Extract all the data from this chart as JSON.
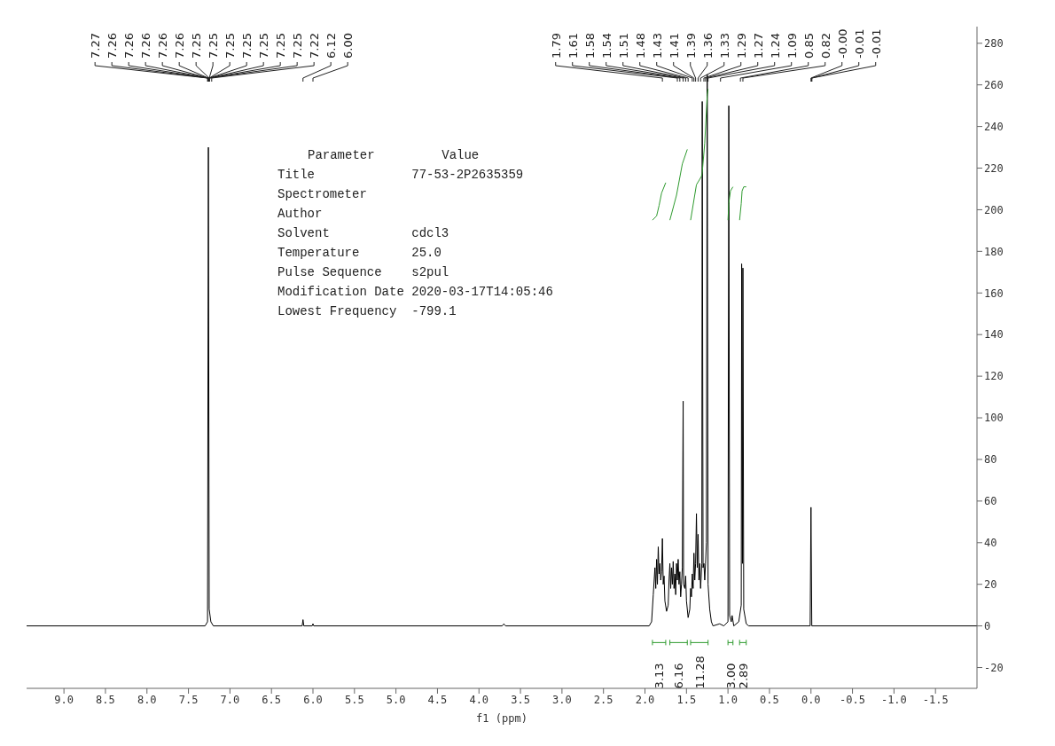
{
  "chart_data": {
    "type": "line",
    "xlabel": "f1 (ppm)",
    "xlim": [
      9.45,
      -2.0
    ],
    "ylim": [
      -30,
      288
    ],
    "xticks": [
      {
        "value": 9,
        "label": "9.0"
      },
      {
        "value": 8.5,
        "label": "8.5"
      },
      {
        "value": 8,
        "label": "8.0"
      },
      {
        "value": 7.5,
        "label": "7.5"
      },
      {
        "value": 7,
        "label": "7.0"
      },
      {
        "value": 6.5,
        "label": "6.5"
      },
      {
        "value": 6,
        "label": "6.0"
      },
      {
        "value": 5.5,
        "label": "5.5"
      },
      {
        "value": 5,
        "label": "5.0"
      },
      {
        "value": 4.5,
        "label": "4.5"
      },
      {
        "value": 4,
        "label": "4.0"
      },
      {
        "value": 3.5,
        "label": "3.5"
      },
      {
        "value": 3,
        "label": "3.0"
      },
      {
        "value": 2.5,
        "label": "2.5"
      },
      {
        "value": 2,
        "label": "2.0"
      },
      {
        "value": 1.5,
        "label": "1.5"
      },
      {
        "value": 1,
        "label": "1.0"
      },
      {
        "value": 0.5,
        "label": "0.5"
      },
      {
        "value": 0,
        "label": "0.0"
      },
      {
        "value": -0.5,
        "label": "-0.5"
      },
      {
        "value": -1,
        "label": "-1.0"
      },
      {
        "value": -1.5,
        "label": "-1.5"
      }
    ],
    "yticks": [
      -20,
      0,
      20,
      40,
      60,
      80,
      100,
      120,
      140,
      160,
      180,
      200,
      220,
      240,
      260,
      280
    ],
    "grid": false,
    "marker": "none",
    "line_style": "solid",
    "series": [
      {
        "color": "#000000",
        "x": [
          9.45,
          7.3,
          7.27,
          7.26,
          7.25,
          7.23,
          7.2,
          6.13,
          6.12,
          6.11,
          6.01,
          6.0,
          5.99,
          3.72,
          3.7,
          3.68,
          1.95,
          1.92,
          1.9,
          1.88,
          1.87,
          1.86,
          1.85,
          1.84,
          1.83,
          1.82,
          1.81,
          1.8,
          1.79,
          1.78,
          1.77,
          1.76,
          1.74,
          1.72,
          1.71,
          1.7,
          1.69,
          1.68,
          1.67,
          1.66,
          1.65,
          1.64,
          1.63,
          1.62,
          1.61,
          1.6,
          1.59,
          1.58,
          1.57,
          1.56,
          1.55,
          1.54,
          1.535,
          1.52,
          1.51,
          1.5,
          1.48,
          1.46,
          1.45,
          1.44,
          1.43,
          1.42,
          1.41,
          1.4,
          1.39,
          1.38,
          1.37,
          1.36,
          1.35,
          1.34,
          1.33,
          1.315,
          1.31,
          1.3,
          1.29,
          1.28,
          1.27,
          1.26,
          1.25,
          1.24,
          1.22,
          1.2,
          1.18,
          1.1,
          1.05,
          1.0,
          0.99,
          0.98,
          0.96,
          0.95,
          0.93,
          0.87,
          0.84,
          0.835,
          0.825,
          0.82,
          0.81,
          0.78,
          0.75,
          0.01,
          0.0,
          -0.01,
          -2.0
        ],
        "values": [
          0,
          0,
          2,
          230,
          8,
          2,
          0,
          0,
          3,
          0,
          0,
          1,
          0,
          0,
          1,
          0,
          0,
          2,
          15,
          28,
          18,
          32,
          20,
          38,
          25,
          30,
          22,
          26,
          42,
          20,
          24,
          12,
          7,
          10,
          22,
          30,
          18,
          28,
          20,
          31,
          18,
          25,
          15,
          30,
          22,
          32,
          20,
          26,
          14,
          20,
          28,
          108,
          20,
          18,
          24,
          12,
          4,
          8,
          18,
          14,
          25,
          18,
          35,
          22,
          30,
          54,
          28,
          44,
          22,
          30,
          18,
          30,
          252,
          28,
          30,
          22,
          30,
          40,
          265,
          20,
          8,
          2,
          0,
          1,
          0,
          2,
          250,
          5,
          2,
          5,
          0,
          2,
          10,
          174,
          30,
          172,
          8,
          1,
          0,
          0,
          57,
          0,
          0
        ]
      },
      {
        "color": "#2e9a2e",
        "x": [
          1.91,
          1.86,
          1.83,
          1.8,
          1.75
        ],
        "values": [
          195,
          197,
          202,
          208,
          213
        ]
      },
      {
        "color": "#2e9a2e",
        "x": [
          1.7,
          1.62,
          1.55,
          1.49
        ],
        "values": [
          195,
          207,
          222,
          229
        ]
      },
      {
        "color": "#2e9a2e",
        "x": [
          1.45,
          1.38,
          1.32,
          1.31,
          1.28,
          1.25,
          1.24
        ],
        "values": [
          195,
          212,
          216,
          218,
          232,
          255,
          258
        ]
      },
      {
        "color": "#2e9a2e",
        "x": [
          1.0,
          0.99,
          0.98,
          0.97,
          0.94
        ],
        "values": [
          195,
          203,
          206,
          209,
          211
        ]
      },
      {
        "color": "#2e9a2e",
        "x": [
          0.86,
          0.84,
          0.83,
          0.81,
          0.78
        ],
        "values": [
          195,
          203,
          209,
          211,
          211
        ]
      }
    ],
    "annotations": [
      "Parameter\tValue",
      "Title\t77-53-2P2635359",
      "Spectrometer",
      "Author",
      "Solvent\tcdcl3",
      "Temperature\t25.0",
      "Pulse Sequence\ts2pul",
      "Modification Date\t2020-03-17T14:05:46",
      "Lowest Frequency\t-799.1",
      {
        "text": "7.27",
        "x": 7.27
      },
      {
        "text": "7.26",
        "x": 7.26
      },
      {
        "text": "7.26",
        "x": 7.26
      },
      {
        "text": "7.26",
        "x": 7.26
      },
      {
        "text": "7.26",
        "x": 7.26
      },
      {
        "text": "7.26",
        "x": 7.26
      },
      {
        "text": "7.25",
        "x": 7.25
      },
      {
        "text": "7.25",
        "x": 7.25
      },
      {
        "text": "7.25",
        "x": 7.25
      },
      {
        "text": "7.25",
        "x": 7.25
      },
      {
        "text": "7.25",
        "x": 7.25
      },
      {
        "text": "7.25",
        "x": 7.25
      },
      {
        "text": "7.25",
        "x": 7.25
      },
      {
        "text": "7.22",
        "x": 7.22
      },
      {
        "text": "6.12",
        "x": 6.12
      },
      {
        "text": "6.00",
        "x": 6.0
      },
      {
        "text": "1.79",
        "x": 1.79
      },
      {
        "text": "1.61",
        "x": 1.61
      },
      {
        "text": "1.58",
        "x": 1.58
      },
      {
        "text": "1.54",
        "x": 1.54
      },
      {
        "text": "1.51",
        "x": 1.51
      },
      {
        "text": "1.48",
        "x": 1.48
      },
      {
        "text": "1.43",
        "x": 1.43
      },
      {
        "text": "1.41",
        "x": 1.41
      },
      {
        "text": "1.39",
        "x": 1.39
      },
      {
        "text": "1.36",
        "x": 1.36
      },
      {
        "text": "1.33",
        "x": 1.33
      },
      {
        "text": "1.29",
        "x": 1.29
      },
      {
        "text": "1.27",
        "x": 1.27
      },
      {
        "text": "1.24",
        "x": 1.24
      },
      {
        "text": "1.09",
        "x": 1.09
      },
      {
        "text": "0.85",
        "x": 0.85
      },
      {
        "text": "0.82",
        "x": 0.82
      },
      {
        "text": "-0.00",
        "x": 0.0
      },
      {
        "text": "-0.01",
        "x": -0.01
      },
      {
        "text": "-0.01",
        "x": -0.01
      },
      "3.13",
      "6.16",
      "11.28",
      "3.00",
      "2.89"
    ]
  }
}
